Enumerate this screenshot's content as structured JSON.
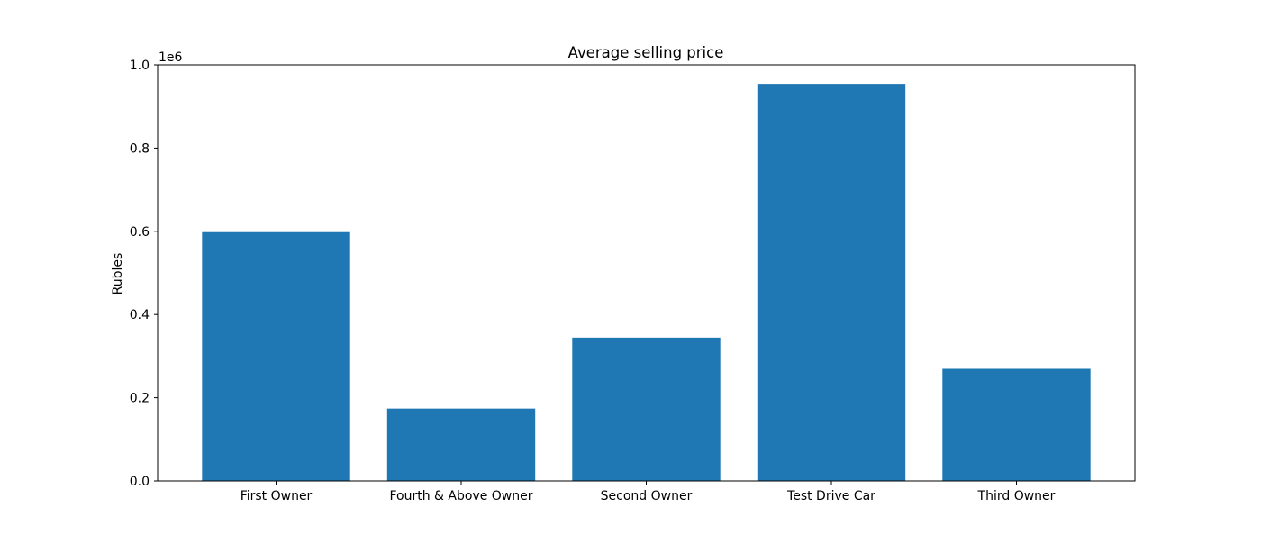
{
  "chart_data": {
    "type": "bar",
    "title": "Average selling price",
    "xlabel": "",
    "ylabel": "Rubles",
    "y_offset_label": "1e6",
    "y_scale": 1000000,
    "categories": [
      "First Owner",
      "Fourth & Above Owner",
      "Second Owner",
      "Test Drive Car",
      "Third Owner"
    ],
    "values": [
      598000,
      173900,
      344500,
      954300,
      269500
    ],
    "ylim": [
      0,
      1000000
    ],
    "yticks": [
      0,
      200000,
      400000,
      600000,
      800000,
      1000000
    ],
    "ytick_labels": [
      "0.0",
      "0.2",
      "0.4",
      "0.6",
      "0.8",
      "1.0"
    ],
    "bar_color": "#1f77b4",
    "grid": false,
    "legend": "none"
  }
}
